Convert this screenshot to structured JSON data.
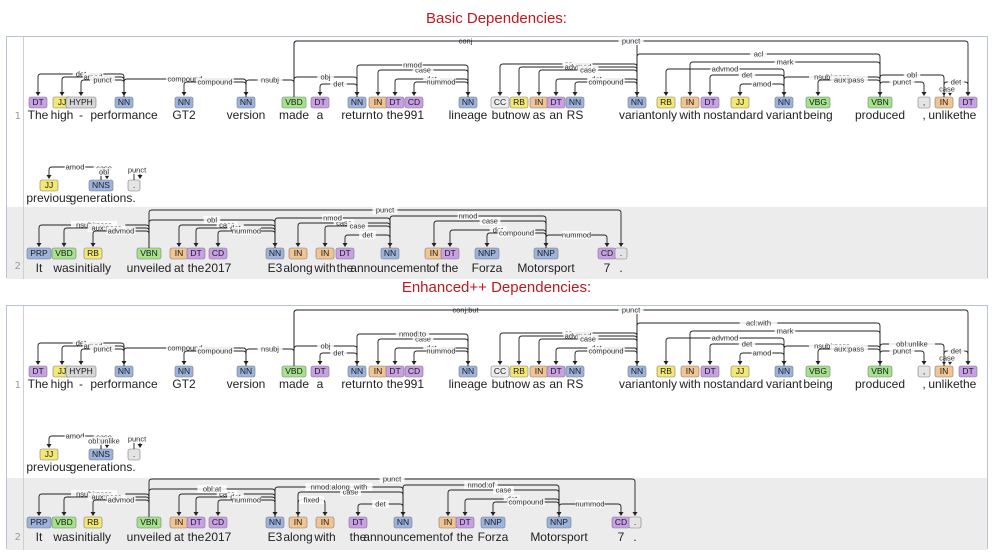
{
  "titles": {
    "basic": "Basic Dependencies:",
    "enhanced": "Enhanced++ Dependencies:"
  },
  "pos_colors": {
    "DT": "#c99fe6",
    "JJ": "#f4e874",
    "HYPH": "#d7d7d7",
    "NN": "#9cb3de",
    "NNS": "#9cb3de",
    "NNP": "#9cb3de",
    "VBD": "#a4e38b",
    "VBN": "#a4e38b",
    "VBG": "#a4e38b",
    "IN": "#f2c492",
    "CD": "#c99fe6",
    "CC": "#ececec",
    "RB": "#f4e874",
    "PRP": "#9cb3de",
    ".": "#e4e4e4",
    ",": "#e4e4e4"
  },
  "sentences": {
    "s1": {
      "number": "1",
      "row1": [
        {
          "w": "The",
          "p": "DT"
        },
        {
          "w": "high",
          "p": "JJ"
        },
        {
          "w": "-",
          "p": "HYPH"
        },
        {
          "w": "performance",
          "p": "NN"
        },
        {
          "w": "GT2",
          "p": "NN"
        },
        {
          "w": "version",
          "p": "NN"
        },
        {
          "w": "made",
          "p": "VBD"
        },
        {
          "w": "a",
          "p": "DT"
        },
        {
          "w": "return",
          "p": "NN"
        },
        {
          "w": "to",
          "p": "IN"
        },
        {
          "w": "the",
          "p": "DT"
        },
        {
          "w": "991",
          "p": "CD"
        },
        {
          "w": "lineage",
          "p": "NN"
        },
        {
          "w": "but",
          "p": "CC"
        },
        {
          "w": "now",
          "p": "RB"
        },
        {
          "w": "as",
          "p": "IN"
        },
        {
          "w": "an",
          "p": "DT"
        },
        {
          "w": "RS",
          "p": "NN"
        },
        {
          "w": "variant",
          "p": "NN"
        },
        {
          "w": "only",
          "p": "RB"
        },
        {
          "w": "with",
          "p": "IN"
        },
        {
          "w": "no",
          "p": "DT"
        },
        {
          "w": "standard",
          "p": "JJ"
        },
        {
          "w": "variant",
          "p": "NN"
        },
        {
          "w": "being",
          "p": "VBG"
        },
        {
          "w": "produced",
          "p": "VBN"
        },
        {
          "w": ",",
          "p": ","
        },
        {
          "w": "unlike",
          "p": "IN"
        },
        {
          "w": "the",
          "p": "DT"
        }
      ],
      "row2": [
        {
          "w": "previous",
          "p": "JJ"
        },
        {
          "w": "generations",
          "p": "NNS"
        },
        {
          "w": ".",
          "p": "."
        }
      ]
    },
    "s2": {
      "number": "2",
      "row1": [
        {
          "w": "It",
          "p": "PRP"
        },
        {
          "w": "was",
          "p": "VBD"
        },
        {
          "w": "initially",
          "p": "RB"
        },
        {
          "w": "unveiled",
          "p": "VBN"
        },
        {
          "w": "at",
          "p": "IN"
        },
        {
          "w": "the",
          "p": "DT"
        },
        {
          "w": "2017",
          "p": "CD"
        },
        {
          "w": "E3",
          "p": "NN"
        },
        {
          "w": "along",
          "p": "IN"
        },
        {
          "w": "with",
          "p": "IN"
        },
        {
          "w": "the",
          "p": "DT"
        },
        {
          "w": "announcement",
          "p": "NN"
        },
        {
          "w": "of",
          "p": "IN"
        },
        {
          "w": "the",
          "p": "DT"
        },
        {
          "w": "Forza",
          "p": "NNP"
        },
        {
          "w": "Motorsport",
          "p": "NNP"
        },
        {
          "w": "7",
          "p": "CD"
        },
        {
          "w": ".",
          "p": "."
        }
      ]
    }
  },
  "basic_arcs": {
    "s1_row1": [
      {
        "h": 3,
        "d": 0,
        "l": "det"
      },
      {
        "h": 3,
        "d": 1,
        "l": "amod"
      },
      {
        "h": 3,
        "d": 2,
        "l": "punct"
      },
      {
        "h": 5,
        "d": 3,
        "l": "compound"
      },
      {
        "h": 5,
        "d": 4,
        "l": "compound"
      },
      {
        "h": 6,
        "d": 5,
        "l": "nsubj"
      },
      {
        "h": 8,
        "d": 7,
        "l": "det"
      },
      {
        "h": 6,
        "d": 8,
        "l": "obj"
      },
      {
        "h": 12,
        "d": 9,
        "l": "case"
      },
      {
        "h": 12,
        "d": 10,
        "l": "det"
      },
      {
        "h": 12,
        "d": 11,
        "l": "nummod"
      },
      {
        "h": 8,
        "d": 12,
        "l": "nmod"
      },
      {
        "h": 18,
        "d": 13,
        "l": "cc"
      },
      {
        "h": 18,
        "d": 14,
        "l": "advmod"
      },
      {
        "h": 18,
        "d": 15,
        "l": "case"
      },
      {
        "h": 18,
        "d": 16,
        "l": "det"
      },
      {
        "h": 18,
        "d": 17,
        "l": "compound"
      },
      {
        "h": 6,
        "d": 18,
        "l": "conj"
      },
      {
        "h": 23,
        "d": 19,
        "l": "advmod"
      },
      {
        "h": 25,
        "d": 20,
        "l": "mark"
      },
      {
        "h": 23,
        "d": 21,
        "l": "det"
      },
      {
        "h": 23,
        "d": 22,
        "l": "amod"
      },
      {
        "h": 25,
        "d": 23,
        "l": "nsubj:pass"
      },
      {
        "h": 25,
        "d": 24,
        "l": "aux:pass"
      },
      {
        "h": 18,
        "d": 25,
        "l": "acl"
      },
      {
        "h": 25,
        "d": 26,
        "l": "punct"
      },
      {
        "h": 25,
        "d": 27,
        "l": "obl"
      },
      {
        "h": 27,
        "d": 27,
        "l": "case"
      },
      {
        "h": 27,
        "d": 28,
        "l": "det"
      },
      {
        "h": 6,
        "d": 29,
        "l": "punct"
      }
    ],
    "s1_row2": [
      {
        "h": 1,
        "d": 0,
        "l": "amod"
      },
      {
        "h": 1,
        "d": 1,
        "l": "det"
      },
      {
        "h": 1,
        "d": 1,
        "l": "case"
      },
      {
        "h": 1,
        "d": 1,
        "l": "obl"
      },
      {
        "h": 2,
        "d": 2,
        "l": "punct"
      }
    ],
    "s2": [
      {
        "h": 3,
        "d": 0,
        "l": "nsubj:pass"
      },
      {
        "h": 3,
        "d": 1,
        "l": "aux:pass"
      },
      {
        "h": 3,
        "d": 2,
        "l": "advmod"
      },
      {
        "h": 7,
        "d": 4,
        "l": "case"
      },
      {
        "h": 7,
        "d": 5,
        "l": "det"
      },
      {
        "h": 7,
        "d": 6,
        "l": "nummod"
      },
      {
        "h": 3,
        "d": 7,
        "l": "obl"
      },
      {
        "h": 11,
        "d": 8,
        "l": "case"
      },
      {
        "h": 11,
        "d": 9,
        "l": "case"
      },
      {
        "h": 11,
        "d": 10,
        "l": "det"
      },
      {
        "h": 7,
        "d": 11,
        "l": "nmod"
      },
      {
        "h": 15,
        "d": 12,
        "l": "case"
      },
      {
        "h": 15,
        "d": 13,
        "l": "det"
      },
      {
        "h": 15,
        "d": 14,
        "l": "compound"
      },
      {
        "h": 11,
        "d": 15,
        "l": "nmod"
      },
      {
        "h": 15,
        "d": 16,
        "l": "nummod"
      },
      {
        "h": 3,
        "d": 17,
        "l": "punct"
      }
    ]
  },
  "enhanced_arcs": {
    "s1_row1": [
      {
        "h": 3,
        "d": 0,
        "l": "det"
      },
      {
        "h": 3,
        "d": 1,
        "l": "amod"
      },
      {
        "h": 3,
        "d": 2,
        "l": "punct"
      },
      {
        "h": 5,
        "d": 3,
        "l": "compound"
      },
      {
        "h": 5,
        "d": 4,
        "l": "compound"
      },
      {
        "h": 6,
        "d": 5,
        "l": "nsubj"
      },
      {
        "h": 8,
        "d": 7,
        "l": "det"
      },
      {
        "h": 6,
        "d": 8,
        "l": "obj"
      },
      {
        "h": 12,
        "d": 9,
        "l": "case"
      },
      {
        "h": 12,
        "d": 10,
        "l": "det"
      },
      {
        "h": 12,
        "d": 11,
        "l": "nummod"
      },
      {
        "h": 8,
        "d": 12,
        "l": "nmod:to"
      },
      {
        "h": 18,
        "d": 13,
        "l": "cc"
      },
      {
        "h": 18,
        "d": 14,
        "l": "advmod"
      },
      {
        "h": 18,
        "d": 15,
        "l": "case"
      },
      {
        "h": 18,
        "d": 16,
        "l": "det"
      },
      {
        "h": 18,
        "d": 17,
        "l": "compound"
      },
      {
        "h": 6,
        "d": 18,
        "l": "conj:but"
      },
      {
        "h": 23,
        "d": 19,
        "l": "advmod"
      },
      {
        "h": 25,
        "d": 20,
        "l": "mark"
      },
      {
        "h": 23,
        "d": 21,
        "l": "det"
      },
      {
        "h": 23,
        "d": 22,
        "l": "amod"
      },
      {
        "h": 25,
        "d": 23,
        "l": "nsubj:pass"
      },
      {
        "h": 25,
        "d": 24,
        "l": "aux:pass"
      },
      {
        "h": 18,
        "d": 25,
        "l": "acl:with"
      },
      {
        "h": 25,
        "d": 26,
        "l": "punct"
      },
      {
        "h": 25,
        "d": 27,
        "l": "obl:unlike"
      },
      {
        "h": 27,
        "d": 27,
        "l": "case"
      },
      {
        "h": 27,
        "d": 28,
        "l": "det"
      },
      {
        "h": 6,
        "d": 29,
        "l": "punct"
      }
    ],
    "s1_row2": [
      {
        "h": 1,
        "d": 0,
        "l": "amod"
      },
      {
        "h": 1,
        "d": 1,
        "l": "det"
      },
      {
        "h": 1,
        "d": 1,
        "l": "case"
      },
      {
        "h": 1,
        "d": 1,
        "l": "obl:unlike"
      },
      {
        "h": 2,
        "d": 2,
        "l": "punct"
      }
    ],
    "s2": [
      {
        "h": 3,
        "d": 0,
        "l": "nsubj:pass"
      },
      {
        "h": 3,
        "d": 1,
        "l": "aux:pass"
      },
      {
        "h": 3,
        "d": 2,
        "l": "advmod"
      },
      {
        "h": 7,
        "d": 4,
        "l": "case"
      },
      {
        "h": 7,
        "d": 5,
        "l": "det"
      },
      {
        "h": 7,
        "d": 6,
        "l": "nummod"
      },
      {
        "h": 3,
        "d": 7,
        "l": "obl:at"
      },
      {
        "h": 11,
        "d": 8,
        "l": "case"
      },
      {
        "h": 8,
        "d": 9,
        "l": "fixed"
      },
      {
        "h": 11,
        "d": 10,
        "l": "det"
      },
      {
        "h": 7,
        "d": 11,
        "l": "nmod:along_with"
      },
      {
        "h": 15,
        "d": 12,
        "l": "case"
      },
      {
        "h": 15,
        "d": 13,
        "l": "det"
      },
      {
        "h": 15,
        "d": 14,
        "l": "compound"
      },
      {
        "h": 11,
        "d": 15,
        "l": "nmod:of"
      },
      {
        "h": 15,
        "d": 16,
        "l": "nummod"
      },
      {
        "h": 3,
        "d": 17,
        "l": "punct"
      }
    ]
  }
}
